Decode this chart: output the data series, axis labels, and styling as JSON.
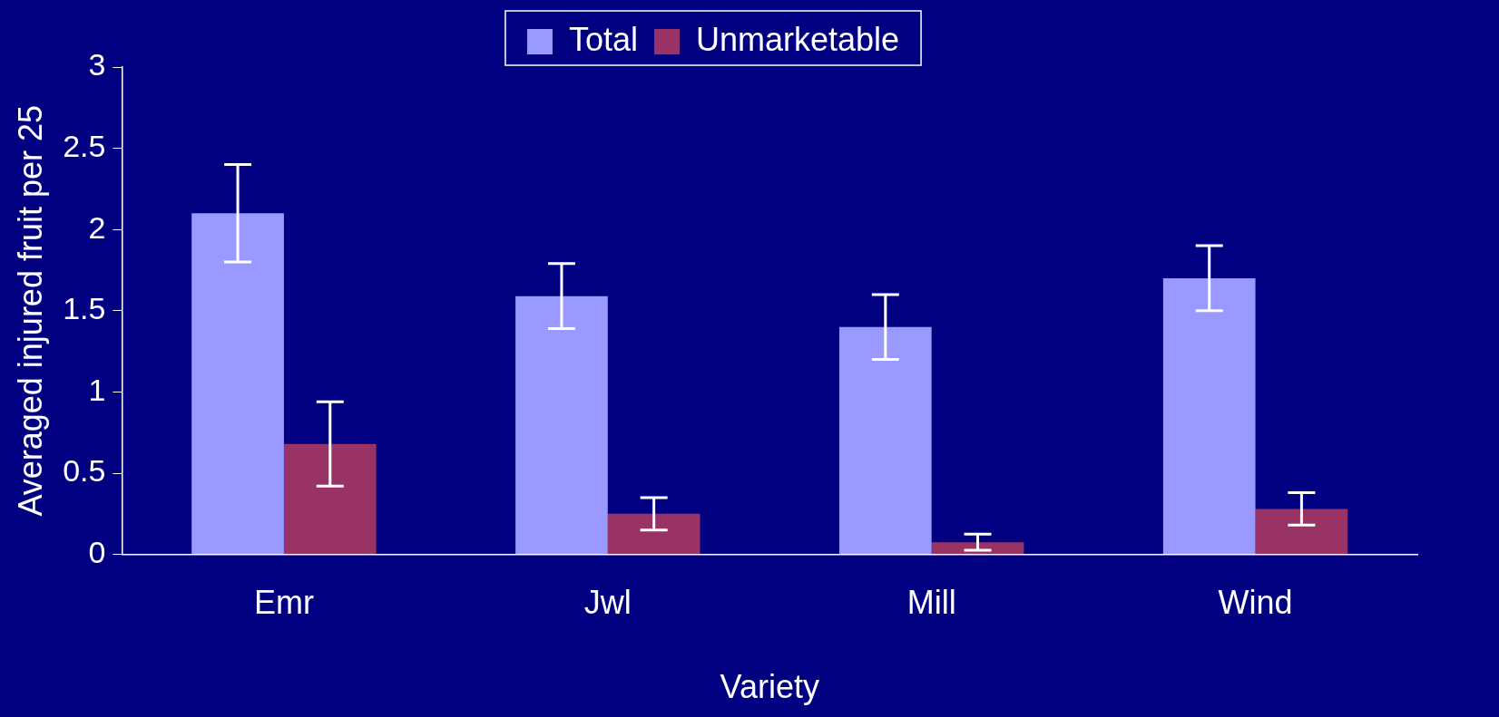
{
  "chart_data": {
    "type": "bar",
    "xlabel": "Variety",
    "ylabel": "Averaged injured fruit per 25",
    "categories": [
      "Emr",
      "Jwl",
      "Mill",
      "Wind"
    ],
    "series": [
      {
        "name": "Total",
        "color": "#9999ff",
        "values": [
          2.1,
          1.59,
          1.4,
          1.7
        ],
        "errors": [
          0.3,
          0.2,
          0.2,
          0.2
        ]
      },
      {
        "name": "Unmarketable",
        "color": "#993366",
        "values": [
          0.68,
          0.25,
          0.075,
          0.28
        ],
        "errors": [
          0.26,
          0.1,
          0.05,
          0.1
        ]
      }
    ],
    "ylim": [
      0,
      3
    ],
    "yticks": [
      0,
      0.5,
      1,
      1.5,
      2,
      2.5,
      3
    ],
    "grid": false,
    "legend": "top"
  }
}
